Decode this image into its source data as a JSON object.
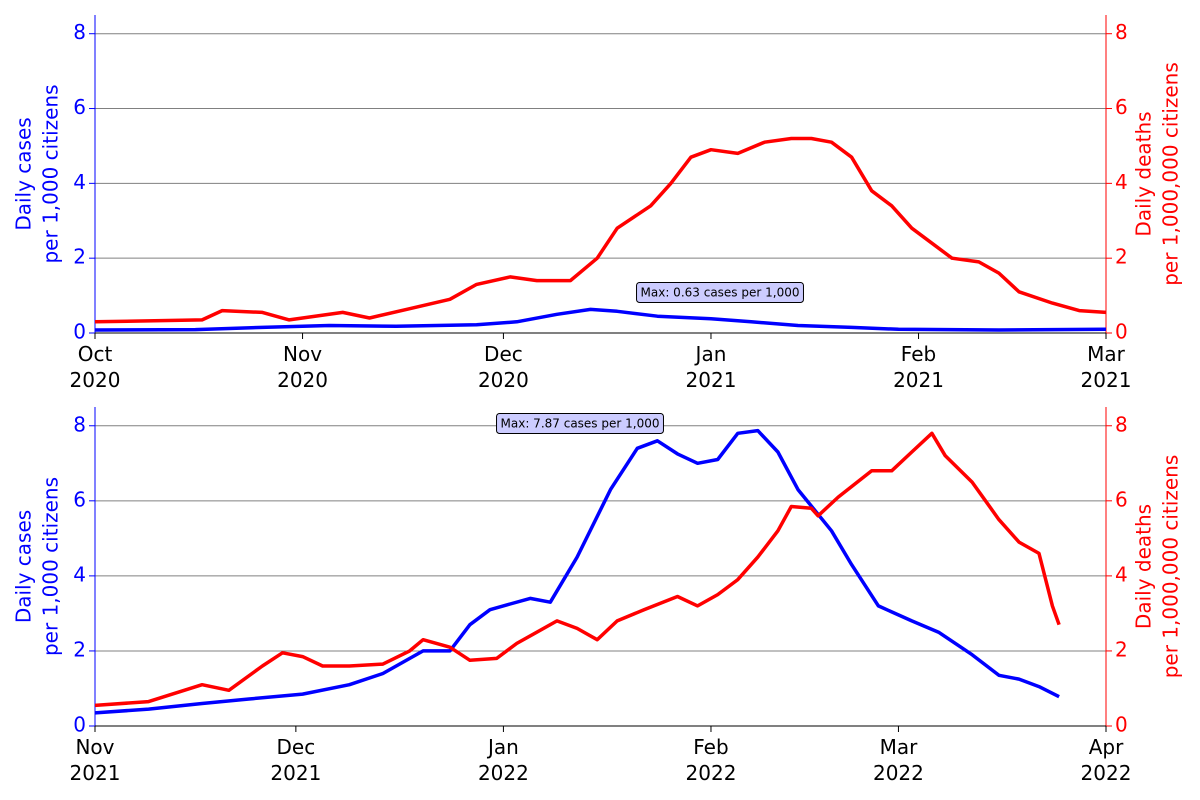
{
  "chart_data": [
    {
      "type": "line",
      "xlim": [
        0,
        151
      ],
      "xticks": [
        {
          "value": 0,
          "label": "Oct\n2020"
        },
        {
          "value": 31,
          "label": "Nov\n2020"
        },
        {
          "value": 61,
          "label": "Dec\n2020"
        },
        {
          "value": 92,
          "label": "Jan\n2021"
        },
        {
          "value": 123,
          "label": "Feb\n2021"
        },
        {
          "value": 151,
          "label": "Mar\n2021"
        }
      ],
      "ylabel": [
        "Daily cases",
        "per 1,000 citizens"
      ],
      "y2label": [
        "Daily deaths",
        "per 1,000,000 citizens"
      ],
      "ylim": [
        0,
        8.5
      ],
      "yticks": [
        0,
        2,
        4,
        6,
        8
      ],
      "y2lim": [
        0,
        8.5
      ],
      "y2ticks": [
        0,
        2,
        4,
        6,
        8
      ],
      "grid": true,
      "annotation": "Max: 0.63 cases per 1,000",
      "series": [
        {
          "color": "#0000ff",
          "axis": "y",
          "x": [
            0,
            15,
            25,
            35,
            45,
            57,
            63,
            69,
            74,
            78,
            84,
            92,
            98,
            105,
            113,
            120,
            135,
            151
          ],
          "values": [
            0.08,
            0.09,
            0.15,
            0.2,
            0.18,
            0.22,
            0.3,
            0.5,
            0.63,
            0.58,
            0.45,
            0.38,
            0.3,
            0.2,
            0.15,
            0.1,
            0.08,
            0.1
          ]
        },
        {
          "color": "#ff0000",
          "axis": "y2",
          "x": [
            0,
            16,
            19,
            25,
            29,
            37,
            41,
            47,
            53,
            57,
            62,
            66,
            71,
            75,
            78,
            83,
            86,
            89,
            92,
            96,
            100,
            104,
            107,
            110,
            113,
            116,
            119,
            122,
            125,
            128,
            132,
            135,
            138,
            143,
            147,
            151
          ],
          "values": [
            0.3,
            0.35,
            0.6,
            0.55,
            0.35,
            0.55,
            0.4,
            0.65,
            0.9,
            1.3,
            1.5,
            1.4,
            1.4,
            2.0,
            2.8,
            3.4,
            4.0,
            4.7,
            4.9,
            4.8,
            5.1,
            5.2,
            5.2,
            5.1,
            4.7,
            3.8,
            3.4,
            2.8,
            2.4,
            2.0,
            1.9,
            1.6,
            1.1,
            0.8,
            0.6,
            0.55
          ]
        }
      ]
    },
    {
      "type": "line",
      "xlim": [
        0,
        151
      ],
      "xticks": [
        {
          "value": 0,
          "label": "Nov\n2021"
        },
        {
          "value": 30,
          "label": "Dec\n2021"
        },
        {
          "value": 61,
          "label": "Jan\n2022"
        },
        {
          "value": 92,
          "label": "Feb\n2022"
        },
        {
          "value": 120,
          "label": "Mar\n2022"
        },
        {
          "value": 151,
          "label": "Apr\n2022"
        }
      ],
      "ylabel": [
        "Daily cases",
        "per 1,000 citizens"
      ],
      "y2label": [
        "Daily deaths",
        "per 1,000,000 citizens"
      ],
      "ylim": [
        0,
        8.5
      ],
      "yticks": [
        0,
        2,
        4,
        6,
        8
      ],
      "y2lim": [
        0,
        8.5
      ],
      "y2ticks": [
        0,
        2,
        4,
        6,
        8
      ],
      "grid": true,
      "annotation": "Max: 7.87 cases per 1,000",
      "series": [
        {
          "color": "#0000ff",
          "axis": "y",
          "x": [
            0,
            8,
            16,
            23,
            31,
            38,
            43,
            49,
            53,
            56,
            59,
            62,
            65,
            68,
            72,
            77,
            81,
            84,
            87,
            90,
            93,
            96,
            99,
            102,
            105,
            110,
            113,
            117,
            122,
            126,
            131,
            135,
            138,
            141,
            144
          ],
          "values": [
            0.35,
            0.45,
            0.6,
            0.72,
            0.85,
            1.1,
            1.4,
            2.0,
            2.0,
            2.7,
            3.1,
            3.25,
            3.4,
            3.3,
            4.5,
            6.3,
            7.4,
            7.6,
            7.25,
            7.0,
            7.1,
            7.8,
            7.87,
            7.3,
            6.3,
            5.2,
            4.3,
            3.2,
            2.8,
            2.5,
            1.9,
            1.35,
            1.25,
            1.05,
            0.78
          ]
        },
        {
          "color": "#ff0000",
          "axis": "y2",
          "x": [
            0,
            8,
            16,
            20,
            25,
            28,
            31,
            34,
            38,
            43,
            47,
            49,
            53,
            56,
            60,
            63,
            69,
            72,
            75,
            78,
            82,
            87,
            90,
            93,
            96,
            99,
            102,
            104,
            107,
            108,
            111,
            116,
            119,
            122,
            125,
            127,
            131,
            133,
            135,
            138,
            141,
            143,
            144
          ],
          "values": [
            0.55,
            0.65,
            1.1,
            0.95,
            1.6,
            1.95,
            1.85,
            1.6,
            1.6,
            1.65,
            2.0,
            2.3,
            2.1,
            1.75,
            1.8,
            2.2,
            2.8,
            2.6,
            2.3,
            2.8,
            3.1,
            3.45,
            3.2,
            3.5,
            3.9,
            4.5,
            5.2,
            5.85,
            5.8,
            5.6,
            6.1,
            6.8,
            6.8,
            7.3,
            7.8,
            7.2,
            6.5,
            6.0,
            5.5,
            4.9,
            4.6,
            3.2,
            2.7
          ]
        }
      ]
    }
  ]
}
